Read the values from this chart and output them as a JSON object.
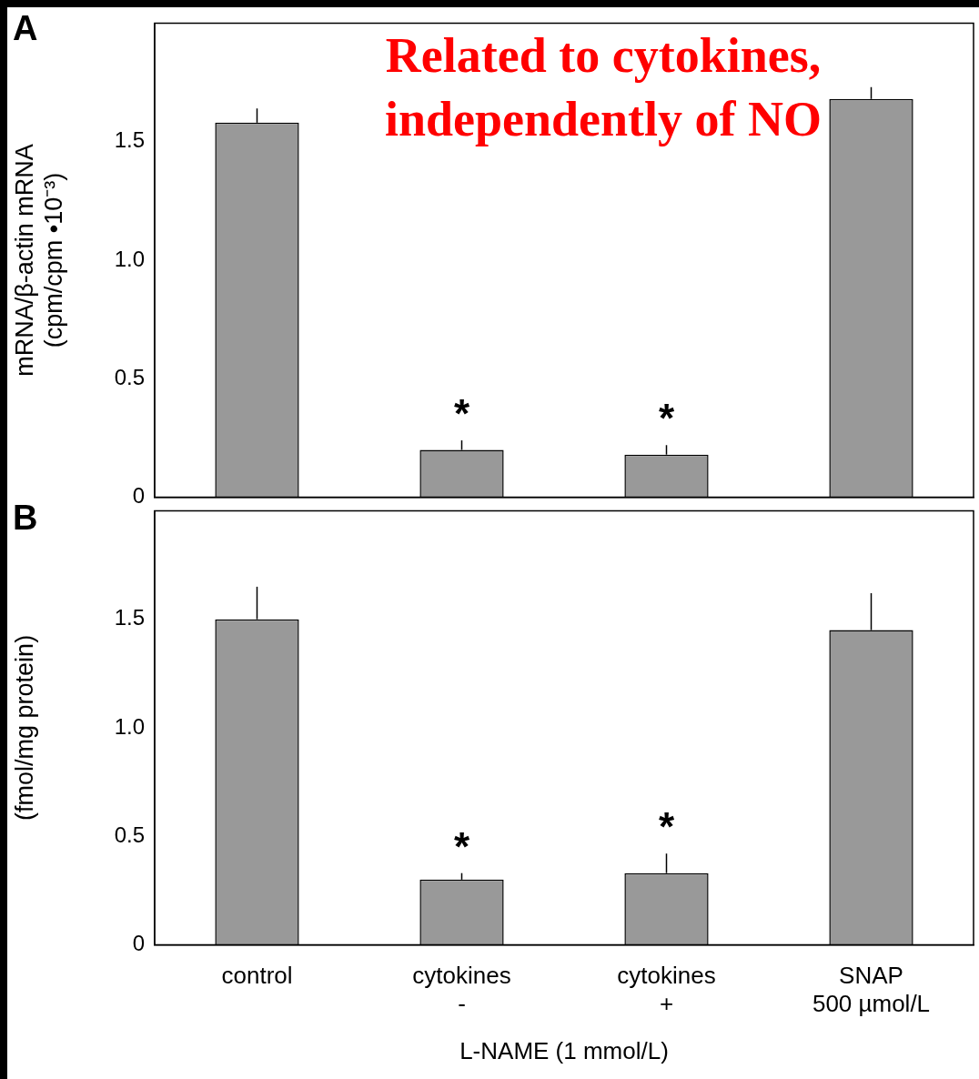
{
  "chart_data": [
    {
      "type": "bar",
      "title": "A",
      "annotations": [
        "Related to cytokines, independently of NO",
        {
          "text": "*",
          "x": "cytokines\n-",
          "y": 0.24
        },
        {
          "text": "*",
          "x": "cytokines\n+",
          "y": 0.22
        }
      ],
      "ylabel": "mRNA/β-actin mRNA\n(cpm/cpm •10⁻³)",
      "categories": [
        "control",
        "cytokines\n-",
        "cytokines\n+",
        "SNAP\n500 µmol/L"
      ],
      "values": [
        1.58,
        0.2,
        0.18,
        1.68
      ],
      "errors": [
        [
          1.58,
          1.64
        ],
        [
          0.2,
          0.24
        ],
        [
          0.18,
          0.22
        ],
        [
          1.68,
          1.73
        ]
      ],
      "color": "#999999",
      "ylim": [
        0,
        2
      ],
      "yticks": [
        0,
        0.5,
        {
          "value": 1,
          "label": "1.0"
        },
        1.5
      ],
      "tick_labels": "y",
      "grid": false,
      "legend": false
    },
    {
      "type": "bar",
      "title": "B",
      "annotations": [
        {
          "text": "*",
          "x": "cytokines\n-",
          "y": 0.33
        },
        {
          "text": "*",
          "x": "cytokines\n+",
          "y": 0.42
        }
      ],
      "ylabel": "(fmol/mg protein)",
      "xlabel": "L-NAME (1 mmol/L)",
      "categories": [
        "control",
        "cytokines\n-",
        "cytokines\n+",
        "SNAP\n500 µmol/L"
      ],
      "values": [
        1.5,
        0.3,
        0.33,
        1.45
      ],
      "errors": [
        [
          1.5,
          1.65
        ],
        [
          0.3,
          0.33
        ],
        [
          0.33,
          0.42
        ],
        [
          1.45,
          1.62
        ]
      ],
      "color": "#999999",
      "ylim": [
        0,
        2
      ],
      "yticks": [
        0,
        0.5,
        {
          "value": 1,
          "label": "1.0"
        },
        1.5
      ],
      "grid": false,
      "legend": false
    }
  ]
}
